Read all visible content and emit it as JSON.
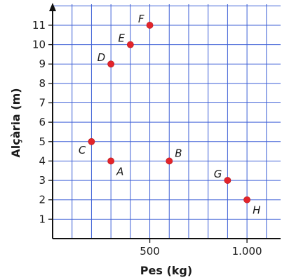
{
  "chart_data": {
    "type": "scatter",
    "xlabel": "Pes (kg)",
    "ylabel": "Alçària (m)",
    "x_ticks": [
      {
        "value": 500,
        "label": "500"
      },
      {
        "value": 1000,
        "label": "1.000"
      }
    ],
    "y_ticks": [
      {
        "value": 1,
        "label": "1"
      },
      {
        "value": 2,
        "label": "2"
      },
      {
        "value": 3,
        "label": "3"
      },
      {
        "value": 4,
        "label": "4"
      },
      {
        "value": 5,
        "label": "5"
      },
      {
        "value": 6,
        "label": "6"
      },
      {
        "value": 7,
        "label": "7"
      },
      {
        "value": 8,
        "label": "8"
      },
      {
        "value": 9,
        "label": "9"
      },
      {
        "value": 10,
        "label": "10"
      },
      {
        "value": 11,
        "label": "11"
      }
    ],
    "xlim": [
      0,
      1200
    ],
    "ylim": [
      0,
      12
    ],
    "grid": true,
    "grid_x_step": 100,
    "grid_y_step": 1,
    "point_color": "#e3242b",
    "grid_color": "#3d5fd6",
    "points": [
      {
        "label": "A",
        "x": 300,
        "y": 4,
        "label_side": "below-right"
      },
      {
        "label": "B",
        "x": 600,
        "y": 4,
        "label_side": "above-right"
      },
      {
        "label": "C",
        "x": 200,
        "y": 5,
        "label_side": "below-left"
      },
      {
        "label": "D",
        "x": 300,
        "y": 9,
        "label_side": "above-left"
      },
      {
        "label": "E",
        "x": 400,
        "y": 10,
        "label_side": "above-left"
      },
      {
        "label": "F",
        "x": 500,
        "y": 11,
        "label_side": "above-left"
      },
      {
        "label": "G",
        "x": 900,
        "y": 3,
        "label_side": "above-left"
      },
      {
        "label": "H",
        "x": 1000,
        "y": 2,
        "label_side": "below-right"
      }
    ]
  }
}
